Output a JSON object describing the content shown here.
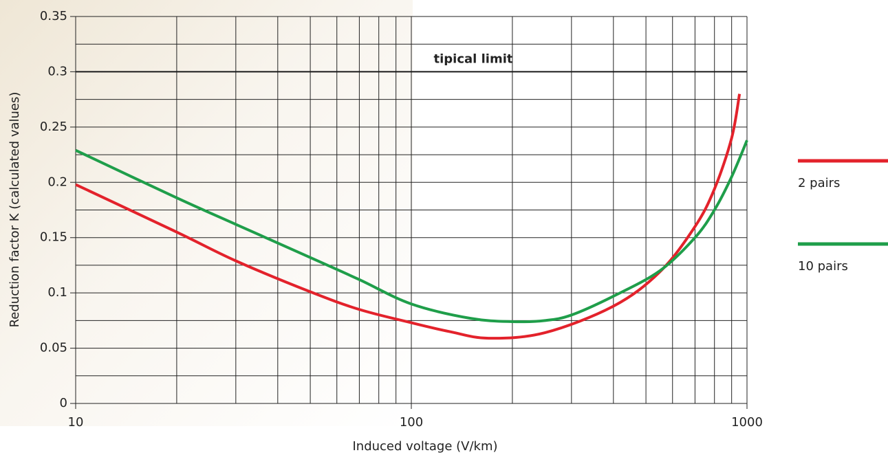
{
  "chart_data": {
    "type": "line",
    "x_label": "Induced voltage (V/km)",
    "y_label": "Reduction factor K (calculated values)",
    "xscale": "log",
    "xlim": [
      10,
      1000
    ],
    "xticks": [
      10,
      100,
      1000
    ],
    "xminor": [
      20,
      30,
      40,
      50,
      60,
      70,
      80,
      90,
      200,
      300,
      400,
      500,
      600,
      700,
      800,
      900
    ],
    "ylim": [
      0,
      0.35
    ],
    "yticks": [
      0,
      0.05,
      0.1,
      0.15,
      0.2,
      0.25,
      0.3,
      0.35
    ],
    "yminor": [
      0.025,
      0.075,
      0.125,
      0.175,
      0.225,
      0.275,
      0.325
    ],
    "grid": true,
    "hline": {
      "value": 0.3,
      "label": "tipical limit",
      "color": "#1a1a1a"
    },
    "legend": "right",
    "series": [
      {
        "name": "2 pairs",
        "color": "#e3222b",
        "x": [
          10,
          20,
          30,
          50,
          70,
          100,
          130,
          170,
          250,
          400,
          550,
          700,
          800,
          900,
          950
        ],
        "values": [
          0.198,
          0.155,
          0.129,
          0.101,
          0.085,
          0.073,
          0.065,
          0.059,
          0.064,
          0.088,
          0.119,
          0.16,
          0.194,
          0.24,
          0.28
        ]
      },
      {
        "name": "10 pairs",
        "color": "#1f9e4a",
        "x": [
          10,
          20,
          30,
          50,
          70,
          100,
          150,
          200,
          250,
          300,
          400,
          550,
          700,
          800,
          900,
          1000
        ],
        "values": [
          0.229,
          0.186,
          0.162,
          0.132,
          0.112,
          0.09,
          0.077,
          0.074,
          0.075,
          0.08,
          0.097,
          0.12,
          0.15,
          0.175,
          0.205,
          0.238
        ]
      }
    ]
  }
}
